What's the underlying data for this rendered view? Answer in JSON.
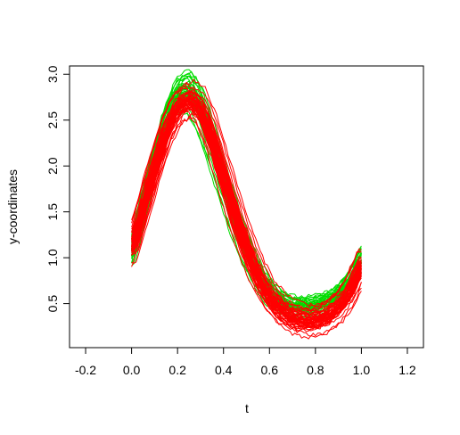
{
  "chart_data": {
    "type": "line",
    "title": "",
    "xlabel": "t",
    "ylabel": "y-coordinates",
    "xlim": [
      -0.27,
      1.27
    ],
    "ylim": [
      0.02,
      3.09
    ],
    "x_ticks": [
      -0.2,
      0.0,
      0.2,
      0.4,
      0.6,
      0.8,
      1.0,
      1.2
    ],
    "x_tick_labels": [
      "-0.2",
      "0.0",
      "0.2",
      "0.4",
      "0.6",
      "0.8",
      "1.0",
      "1.2"
    ],
    "y_ticks": [
      0.5,
      1.0,
      1.5,
      2.0,
      2.5,
      3.0
    ],
    "y_tick_labels": [
      "0.5",
      "1.0",
      "1.5",
      "2.0",
      "2.5",
      "3.0"
    ],
    "grid": false,
    "legend": "none",
    "t": [
      0.0,
      0.05,
      0.1,
      0.15,
      0.2,
      0.25,
      0.3,
      0.35,
      0.4,
      0.45,
      0.5,
      0.55,
      0.6,
      0.65,
      0.7,
      0.75,
      0.8,
      0.85,
      0.9,
      0.95,
      1.0
    ],
    "groups": [
      {
        "color": "#00dd00",
        "curve_count": 40,
        "mean": [
          1.05,
          1.55,
          2.05,
          2.5,
          2.78,
          2.82,
          2.6,
          2.2,
          1.78,
          1.38,
          1.05,
          0.8,
          0.62,
          0.52,
          0.47,
          0.46,
          0.48,
          0.52,
          0.6,
          0.75,
          1.0
        ],
        "spread": [
          0.12,
          0.12,
          0.12,
          0.13,
          0.15,
          0.17,
          0.17,
          0.15,
          0.13,
          0.12,
          0.11,
          0.1,
          0.09,
          0.08,
          0.08,
          0.08,
          0.08,
          0.08,
          0.08,
          0.09,
          0.1
        ]
      },
      {
        "color": "#ff0000",
        "curve_count": 50,
        "mean": [
          1.1,
          1.55,
          1.98,
          2.38,
          2.63,
          2.72,
          2.6,
          2.28,
          1.85,
          1.43,
          1.07,
          0.77,
          0.55,
          0.41,
          0.33,
          0.3,
          0.31,
          0.36,
          0.46,
          0.64,
          0.92
        ],
        "spread": [
          0.1,
          0.1,
          0.1,
          0.1,
          0.1,
          0.1,
          0.11,
          0.12,
          0.12,
          0.12,
          0.11,
          0.1,
          0.09,
          0.09,
          0.09,
          0.09,
          0.09,
          0.09,
          0.09,
          0.1,
          0.11
        ]
      }
    ]
  }
}
